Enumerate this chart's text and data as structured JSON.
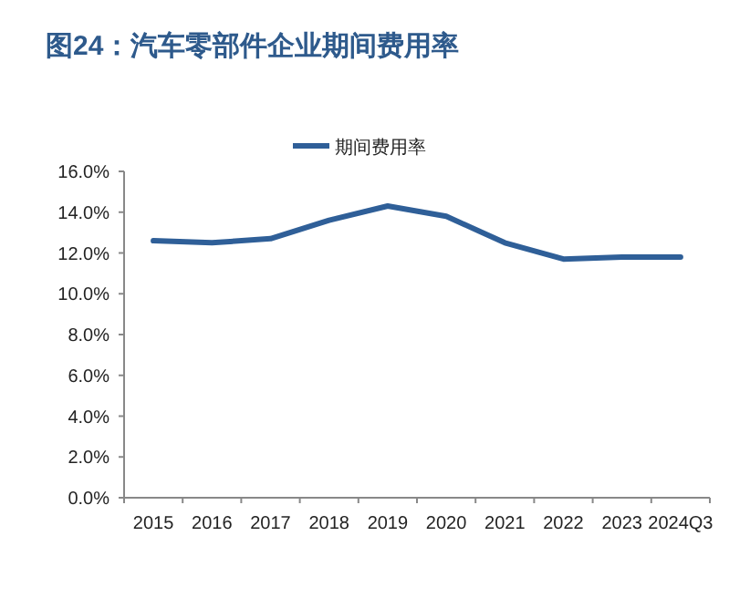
{
  "chart_data": {
    "type": "line",
    "title": "图24：汽车零部件企业期间费用率",
    "categories": [
      "2015",
      "2016",
      "2017",
      "2018",
      "2019",
      "2020",
      "2021",
      "2022",
      "2023",
      "2024Q3"
    ],
    "series": [
      {
        "name": "期间费用率",
        "color": "#2f5f98",
        "values": [
          12.6,
          12.5,
          12.7,
          13.6,
          14.3,
          13.8,
          12.5,
          11.7,
          11.8,
          11.8
        ]
      }
    ],
    "ylim": [
      0,
      16
    ],
    "yticks": [
      {
        "value": 0,
        "label": "0.0%"
      },
      {
        "value": 2,
        "label": "2.0%"
      },
      {
        "value": 4,
        "label": "4.0%"
      },
      {
        "value": 6,
        "label": "6.0%"
      },
      {
        "value": 8,
        "label": "8.0%"
      },
      {
        "value": 10,
        "label": "10.0%"
      },
      {
        "value": 12,
        "label": "12.0%"
      },
      {
        "value": 14,
        "label": "14.0%"
      },
      {
        "value": 16,
        "label": "16.0%"
      }
    ],
    "grid": false,
    "legend": "top",
    "marker": "none",
    "line_style": "solid"
  }
}
